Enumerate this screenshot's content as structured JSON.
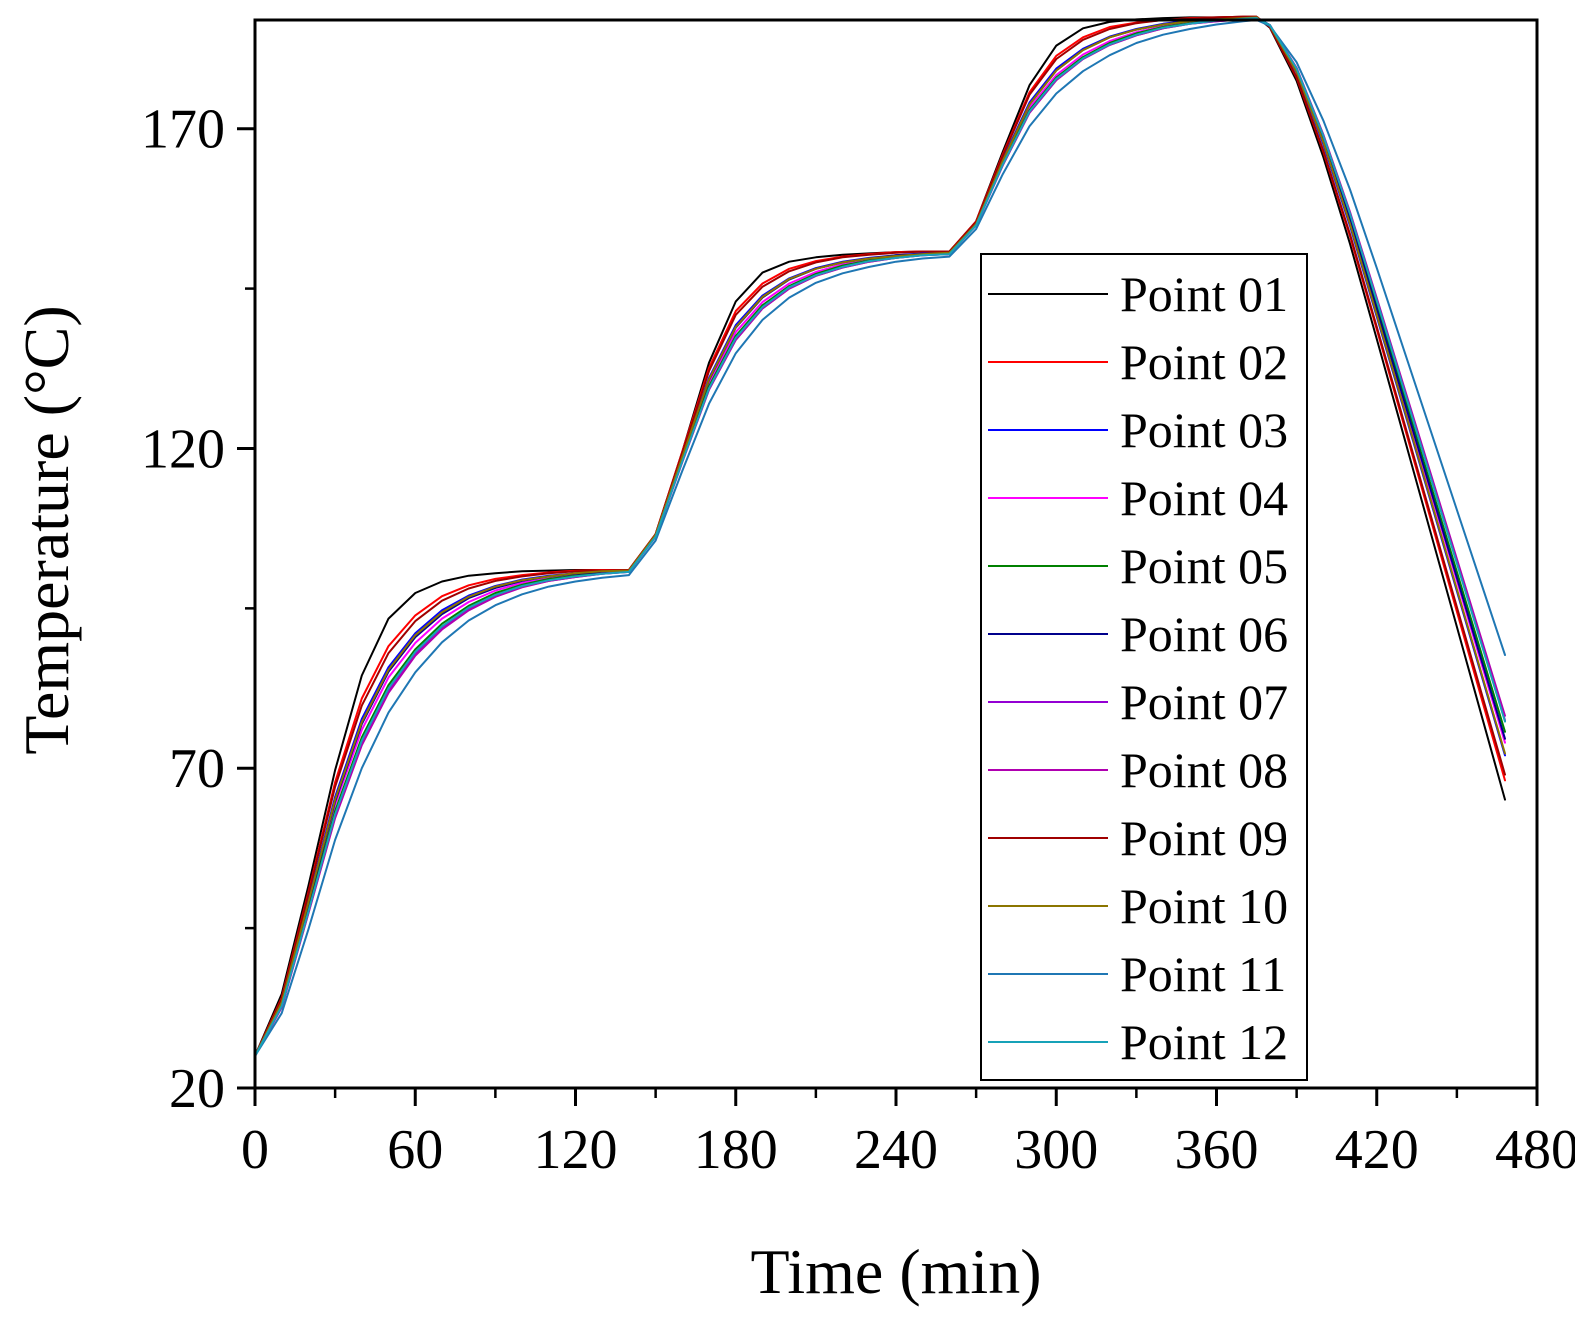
{
  "chart_data": {
    "type": "line",
    "title": "",
    "xlabel": "Time (min)",
    "ylabel": "Temperature (°C)",
    "xlim": [
      0,
      480
    ],
    "ylim": [
      20,
      187
    ],
    "xticks": [
      0,
      60,
      120,
      180,
      240,
      300,
      360,
      420,
      480
    ],
    "yticks": [
      20,
      70,
      120,
      170
    ],
    "x_minor_step": 30,
    "y_minor_step": 25,
    "grid": false,
    "legend_position": "right",
    "x": [
      0,
      10,
      20,
      30,
      40,
      50,
      60,
      70,
      80,
      90,
      100,
      110,
      120,
      130,
      140,
      150,
      160,
      170,
      180,
      190,
      200,
      210,
      220,
      230,
      240,
      250,
      260,
      270,
      280,
      290,
      300,
      310,
      320,
      330,
      340,
      350,
      360,
      370,
      375,
      380,
      390,
      400,
      410,
      420,
      430,
      440,
      450,
      460,
      468
    ],
    "series": [
      {
        "name": "Point 01",
        "color": "#000000",
        "values": [
          25.0,
          34.7,
          51.6,
          69.7,
          84.5,
          93.4,
          97.4,
          99.2,
          100.1,
          100.5,
          100.8,
          100.9,
          101.0,
          101.0,
          101.0,
          106.6,
          119.5,
          133.4,
          143.0,
          147.5,
          149.2,
          149.9,
          150.3,
          150.5,
          150.7,
          150.8,
          150.8,
          155.5,
          166.4,
          176.8,
          183.0,
          185.7,
          186.7,
          187.1,
          187.3,
          187.4,
          187.4,
          187.5,
          187.5,
          185.8,
          177.5,
          165.6,
          152.0,
          137.1,
          122.1,
          107.1,
          92.1,
          77.1,
          65.1
        ]
      },
      {
        "name": "Point 02",
        "color": "#ff0000",
        "values": [
          25.0,
          34.1,
          50.6,
          67.8,
          80.9,
          89.1,
          93.9,
          96.9,
          98.6,
          99.6,
          100.2,
          100.6,
          100.9,
          101.0,
          101.0,
          106.6,
          119.5,
          132.6,
          141.5,
          145.8,
          148.1,
          149.3,
          150.0,
          150.4,
          150.7,
          150.8,
          150.8,
          155.5,
          166.0,
          175.7,
          181.4,
          184.3,
          185.9,
          186.6,
          187.0,
          187.3,
          187.4,
          187.5,
          187.5,
          185.9,
          178.0,
          166.4,
          153.2,
          138.6,
          123.9,
          109.2,
          94.5,
          79.8,
          68.1
        ]
      },
      {
        "name": "Point 03",
        "color": "#0000ff",
        "values": [
          25.0,
          33.5,
          49.3,
          65.5,
          77.7,
          85.8,
          91.1,
          94.7,
          97.0,
          98.5,
          99.5,
          100.1,
          100.5,
          100.8,
          100.9,
          106.5,
          118.8,
          131.0,
          139.3,
          143.9,
          146.6,
          148.2,
          149.2,
          149.8,
          150.2,
          150.5,
          150.6,
          155.2,
          165.2,
          174.1,
          179.4,
          182.5,
          184.4,
          185.6,
          186.4,
          186.9,
          187.2,
          187.4,
          187.4,
          186.1,
          178.8,
          167.6,
          154.8,
          140.6,
          126.3,
          112.0,
          97.7,
          83.4,
          72.0
        ]
      },
      {
        "name": "Point 04",
        "color": "#ff00ff",
        "values": [
          25.0,
          33.2,
          48.6,
          64.3,
          76.0,
          84.2,
          89.6,
          93.4,
          96.0,
          97.8,
          99.0,
          99.7,
          100.2,
          100.6,
          100.8,
          106.4,
          118.5,
          130.3,
          138.2,
          142.9,
          145.8,
          147.6,
          148.8,
          149.5,
          150.0,
          150.3,
          150.5,
          155.0,
          164.8,
          173.3,
          178.4,
          181.6,
          183.7,
          185.1,
          186.0,
          186.6,
          187.0,
          187.3,
          187.4,
          186.1,
          179.0,
          168.1,
          155.6,
          141.6,
          127.5,
          113.4,
          99.3,
          85.2,
          74.0
        ]
      },
      {
        "name": "Point 05",
        "color": "#008000",
        "values": [
          25.0,
          32.9,
          48.0,
          63.3,
          74.8,
          83.0,
          88.6,
          92.6,
          95.4,
          97.4,
          98.7,
          99.6,
          100.1,
          100.5,
          100.8,
          106.3,
          118.2,
          129.7,
          137.6,
          142.4,
          145.4,
          147.3,
          148.6,
          149.4,
          149.9,
          150.3,
          150.5,
          155.0,
          164.6,
          172.9,
          178.0,
          181.2,
          183.4,
          184.9,
          185.9,
          186.5,
          187.0,
          187.2,
          187.3,
          186.2,
          179.3,
          168.6,
          156.2,
          142.4,
          128.5,
          114.6,
          100.7,
          86.8,
          75.7
        ]
      },
      {
        "name": "Point 06",
        "color": "#00008b",
        "values": [
          25.0,
          33.3,
          48.8,
          64.8,
          76.9,
          85.1,
          90.5,
          94.1,
          96.6,
          98.2,
          99.3,
          100.0,
          100.4,
          100.7,
          100.9,
          106.5,
          118.7,
          130.7,
          138.9,
          143.6,
          146.4,
          148.1,
          149.1,
          149.7,
          150.2,
          150.4,
          150.6,
          155.2,
          165.0,
          173.8,
          179.1,
          182.3,
          184.3,
          185.5,
          186.3,
          186.8,
          187.1,
          187.3,
          187.4,
          186.2,
          179.1,
          168.3,
          155.7,
          141.8,
          127.8,
          113.8,
          99.8,
          85.8,
          74.6
        ]
      },
      {
        "name": "Point 07",
        "color": "#9400d3",
        "values": [
          25.0,
          32.7,
          47.4,
          62.4,
          73.8,
          82.0,
          87.8,
          91.9,
          94.8,
          96.9,
          98.4,
          99.3,
          99.9,
          100.4,
          100.7,
          106.2,
          117.9,
          129.2,
          137.0,
          141.9,
          145.0,
          147.0,
          148.3,
          149.2,
          149.8,
          150.2,
          150.4,
          154.9,
          164.3,
          172.5,
          177.6,
          180.9,
          183.1,
          184.6,
          185.7,
          186.4,
          186.8,
          187.1,
          187.3,
          186.2,
          179.5,
          169.0,
          156.8,
          143.3,
          129.6,
          115.9,
          102.2,
          88.5,
          77.5
        ]
      },
      {
        "name": "Point 08",
        "color": "#b000b0",
        "values": [
          25.0,
          32.6,
          47.3,
          62.2,
          73.6,
          81.8,
          87.6,
          91.7,
          94.7,
          96.8,
          98.3,
          99.3,
          99.9,
          100.4,
          100.7,
          106.2,
          117.9,
          129.2,
          137.0,
          141.9,
          145.0,
          147.0,
          148.3,
          149.2,
          149.8,
          150.2,
          150.4,
          154.9,
          164.3,
          172.5,
          177.6,
          180.9,
          183.1,
          184.6,
          185.7,
          186.4,
          186.8,
          187.1,
          187.3,
          186.2,
          179.5,
          169.1,
          157.0,
          143.5,
          129.9,
          116.3,
          102.7,
          89.1,
          78.2
        ]
      },
      {
        "name": "Point 09",
        "color": "#a00000",
        "values": [
          25.0,
          33.9,
          50.3,
          67.1,
          79.8,
          88.0,
          93.0,
          96.2,
          98.1,
          99.3,
          100.0,
          100.5,
          100.8,
          100.9,
          101.0,
          106.6,
          119.3,
          132.1,
          140.9,
          145.3,
          147.7,
          149.1,
          149.9,
          150.3,
          150.6,
          150.8,
          150.8,
          155.4,
          165.8,
          175.3,
          180.9,
          183.9,
          185.6,
          186.5,
          187.0,
          187.2,
          187.4,
          187.5,
          187.5,
          185.9,
          178.1,
          166.6,
          153.5,
          139.0,
          124.4,
          109.8,
          95.2,
          80.6,
          69.0
        ]
      },
      {
        "name": "Point 10",
        "color": "#8b7500",
        "values": [
          25.0,
          33.4,
          49.0,
          65.1,
          77.2,
          85.4,
          90.8,
          94.4,
          96.8,
          98.4,
          99.4,
          100.0,
          100.5,
          100.8,
          100.9,
          106.5,
          118.7,
          130.8,
          139.0,
          143.7,
          146.5,
          148.1,
          149.1,
          149.7,
          150.1,
          150.4,
          150.6,
          155.1,
          165.0,
          173.8,
          179.1,
          182.3,
          184.3,
          185.5,
          186.3,
          186.8,
          187.1,
          187.3,
          187.4,
          186.1,
          178.9,
          167.9,
          155.1,
          140.9,
          126.6,
          112.3,
          98.0,
          83.7,
          72.3
        ]
      },
      {
        "name": "Point 11",
        "color": "#1f77b4",
        "values": [
          25.0,
          31.7,
          44.8,
          58.8,
          70.0,
          78.7,
          85.0,
          89.7,
          93.1,
          95.5,
          97.2,
          98.4,
          99.2,
          99.8,
          100.2,
          105.6,
          116.5,
          127.0,
          134.9,
          140.1,
          143.6,
          145.9,
          147.4,
          148.4,
          149.2,
          149.7,
          150.0,
          154.3,
          162.9,
          170.4,
          175.5,
          179.0,
          181.5,
          183.4,
          184.7,
          185.6,
          186.3,
          186.8,
          187.0,
          186.1,
          180.4,
          171.3,
          160.5,
          148.2,
          135.6,
          123.0,
          110.4,
          97.8,
          87.7
        ]
      },
      {
        "name": "Point 12",
        "color": "#17a2b8",
        "values": [
          25.0,
          32.8,
          47.6,
          62.8,
          74.3,
          82.5,
          88.2,
          92.2,
          95.1,
          97.1,
          98.5,
          99.4,
          100.0,
          100.4,
          100.7,
          106.2,
          118.0,
          129.4,
          137.3,
          142.1,
          145.2,
          147.1,
          148.4,
          149.3,
          149.8,
          150.2,
          150.4,
          154.9,
          164.4,
          172.7,
          177.8,
          181.0,
          183.2,
          184.7,
          185.8,
          186.4,
          186.9,
          187.2,
          187.3,
          186.2,
          179.4,
          168.9,
          156.7,
          143.1,
          129.4,
          115.7,
          102.0,
          88.3,
          77.3
        ]
      }
    ]
  }
}
